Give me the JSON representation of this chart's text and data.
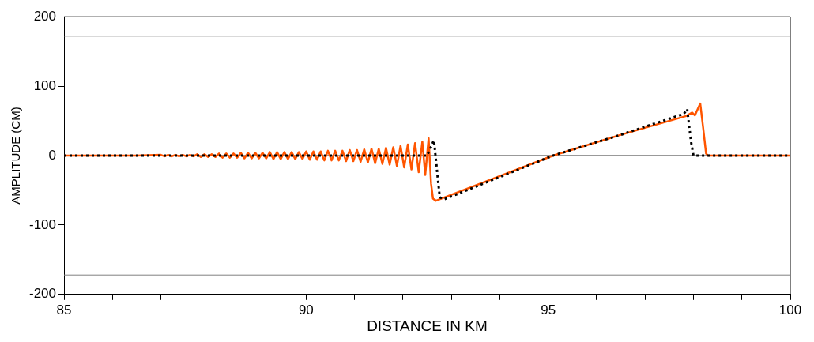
{
  "chart_data": {
    "type": "line",
    "xlabel": "DISTANCE IN KM",
    "ylabel": "AMPLITUDE (CM)",
    "xlim": [
      85,
      100
    ],
    "ylim": [
      -200,
      200
    ],
    "xticks": [
      85,
      {
        "value": 86,
        "label": null
      },
      {
        "value": 87,
        "label": null
      },
      {
        "value": 88,
        "label": null
      },
      {
        "value": 89,
        "label": null
      },
      90,
      {
        "value": 91,
        "label": null
      },
      {
        "value": 92,
        "label": null
      },
      {
        "value": 93,
        "label": null
      },
      {
        "value": 94,
        "label": null
      },
      95,
      {
        "value": 96,
        "label": null
      },
      {
        "value": 97,
        "label": null
      },
      {
        "value": 98,
        "label": null
      },
      {
        "value": 99,
        "label": null
      },
      100
    ],
    "yticks": [
      -200,
      -100,
      0,
      100,
      200
    ],
    "grid": false,
    "marker": "none",
    "ref_lines": [
      {
        "axis": "y",
        "value": 172,
        "color": "#808080"
      },
      {
        "axis": "y",
        "value": -172,
        "color": "#808080"
      },
      {
        "axis": "y",
        "value": 0,
        "color": "#333333"
      }
    ],
    "series": [
      {
        "color": "#000000",
        "line_style": "dotted",
        "x": [
          85,
          92.5,
          92.64,
          92.76,
          92.85,
          95.1,
          96.5,
          97.8,
          97.87,
          97.95,
          98.0,
          100
        ],
        "values": [
          0,
          0,
          22,
          -60,
          -63,
          0,
          30,
          60,
          67,
          20,
          0,
          0
        ]
      },
      {
        "color": "#ff5500",
        "line_style": "solid",
        "x": [
          85,
          86.5,
          87.0,
          87.075,
          87.15,
          87.225,
          87.3,
          87.375,
          87.45,
          87.525,
          87.6,
          87.675,
          87.75,
          87.825,
          87.9,
          87.975,
          88.05,
          88.125,
          88.2,
          88.275,
          88.35,
          88.425,
          88.5,
          88.575,
          88.65,
          88.725,
          88.8,
          88.875,
          88.95,
          89.025,
          89.1,
          89.175,
          89.25,
          89.325,
          89.4,
          89.475,
          89.55,
          89.625,
          89.7,
          89.775,
          89.85,
          89.925,
          90.0,
          90.075,
          90.15,
          90.225,
          90.3,
          90.375,
          90.45,
          90.525,
          90.6,
          90.675,
          90.75,
          90.825,
          90.9,
          90.975,
          91.05,
          91.125,
          91.2,
          91.275,
          91.35,
          91.425,
          91.5,
          91.575,
          91.65,
          91.725,
          91.8,
          91.875,
          91.95,
          92.025,
          92.1,
          92.175,
          92.25,
          92.325,
          92.4,
          92.46,
          92.53,
          92.58,
          92.62,
          92.68,
          95.1,
          96.5,
          97.85,
          97.97,
          98.03,
          98.14,
          98.2,
          98.26,
          98.3,
          100
        ],
        "values": [
          0,
          0,
          1,
          -1,
          1,
          -1,
          1,
          -1,
          1,
          -1,
          1,
          -1,
          2,
          -2,
          2,
          -2,
          2,
          -2,
          3,
          -3,
          3,
          -3,
          3,
          -3,
          4,
          -4,
          4,
          -4,
          4,
          -4,
          4,
          -4,
          5,
          -5,
          5,
          -5,
          5,
          -5,
          5,
          -5,
          5,
          -5,
          6,
          -6,
          6,
          -6,
          6,
          -7,
          7,
          -7,
          7,
          -7,
          7,
          -8,
          8,
          -8,
          8,
          -9,
          9,
          -10,
          10,
          -11,
          10,
          -12,
          11,
          -13,
          12,
          -15,
          14,
          -17,
          16,
          -20,
          18,
          -24,
          20,
          -28,
          25,
          -40,
          -62,
          -65,
          0,
          30,
          57,
          62,
          58,
          75,
          40,
          3,
          0,
          0
        ]
      }
    ]
  }
}
